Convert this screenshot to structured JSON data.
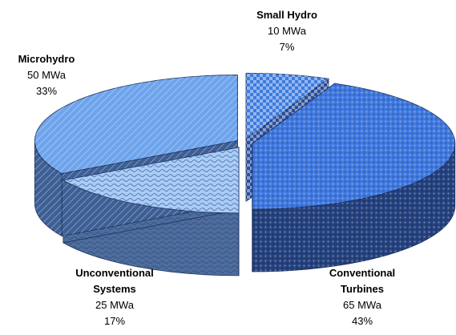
{
  "chart_data": {
    "type": "pie",
    "style": "3d-exploded",
    "slices": [
      {
        "name": "Small Hydro",
        "name_lines": [
          "Small Hydro"
        ],
        "value": 10,
        "value_text": "10 MWa",
        "percent": 7,
        "percent_text": "7%",
        "top_color": "#3d7be0",
        "side_color": "#2b4f9a"
      },
      {
        "name": "Conventional Turbines",
        "name_lines": [
          "Conventional",
          "Turbines"
        ],
        "value": 65,
        "value_text": "65 MWa",
        "percent": 43,
        "percent_text": "43%",
        "top_color": "#3f78df",
        "side_color": "#25427f"
      },
      {
        "name": "Unconventional Systems",
        "name_lines": [
          "Unconventional",
          "Systems"
        ],
        "value": 25,
        "value_text": "25 MWa",
        "percent": 17,
        "percent_text": "17%",
        "top_color": "#a9cdf6",
        "side_color": "#4f6d9c"
      },
      {
        "name": "Microhydro",
        "name_lines": [
          "Microhydro"
        ],
        "value": 50,
        "value_text": "50 MWa",
        "percent": 33,
        "percent_text": "33%",
        "top_color": "#6ea4ec",
        "side_color": "#3e5f95"
      }
    ]
  }
}
